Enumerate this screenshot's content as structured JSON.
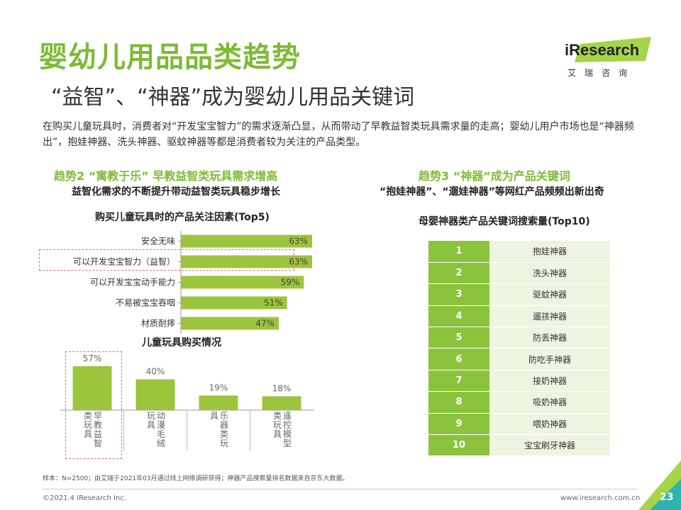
{
  "title": "婴幼儿用品品类趋势",
  "subtitle": "“益智”、“神器”成为婴幼儿用品关键词",
  "description": "在购买儿童玩具时，消费者对“开发宝宝智力”的需求逐渐凸显，从而带动了早教益智类玩具需求量的走高；婴幼儿用户市场也是“神器频出”，抱娃神器、洗头神器、驱蚊神器等都是消费者较为关注的产品类型。",
  "logo": {
    "brand": "iResearch",
    "brand_cn": "艾瑞咨询"
  },
  "colors": {
    "accent": "#7dbb35",
    "bar": "#9cc43c",
    "table_num_bg": "#8bc33d",
    "table_kw_bg": "#edf5e0",
    "highlight": "#e0707a"
  },
  "left": {
    "section_title": "趋势2 “寓教于乐” 早教益智类玩具需求增高",
    "section_subtitle": "益智化需求的不断提升带动益智类玩具稳步增长",
    "hbar_title": "购买儿童玩具时的产品关注因素(Top5)",
    "vbar_title": "儿童玩具购买情况"
  },
  "right": {
    "section_title": "趋势3 “神器“成为产品关键词",
    "section_subtitle": "“抱娃神器”、“遛娃神器”等网红产品频频出新出奇",
    "table_title": "母婴神器类产品关键词搜索量(Top10)",
    "rankings": [
      {
        "rank": "1",
        "keyword": "抱娃神器"
      },
      {
        "rank": "2",
        "keyword": "洗头神器"
      },
      {
        "rank": "3",
        "keyword": "驱蚊神器"
      },
      {
        "rank": "4",
        "keyword": "遛孩神器"
      },
      {
        "rank": "5",
        "keyword": "防丢神器"
      },
      {
        "rank": "6",
        "keyword": "防吃手神器"
      },
      {
        "rank": "7",
        "keyword": "接奶神器"
      },
      {
        "rank": "8",
        "keyword": "吸奶神器"
      },
      {
        "rank": "9",
        "keyword": "喂奶神器"
      },
      {
        "rank": "10",
        "keyword": "宝宝刷牙神器"
      }
    ]
  },
  "chart_data": [
    {
      "type": "bar",
      "orientation": "horizontal",
      "title": "购买儿童玩具时的产品关注因素(Top5)",
      "categories": [
        "安全无味",
        "可以开发宝宝智力（益智）",
        "可以开发宝宝动手能力",
        "不易被宝宝吞咽",
        "材质耐摔"
      ],
      "values": [
        63,
        63,
        59,
        51,
        47
      ],
      "value_labels": [
        "63%",
        "63%",
        "59%",
        "51%",
        "47%"
      ],
      "unit": "%",
      "xlim": [
        0,
        100
      ],
      "highlighted_category": "可以开发宝宝智力（益智）"
    },
    {
      "type": "bar",
      "orientation": "vertical",
      "title": "儿童玩具购买情况",
      "categories": [
        {
          "col1": "早教益智",
          "col2": "类玩具"
        },
        {
          "col1": "动漫毛绒",
          "col2": "玩具"
        },
        {
          "col1": "乐器类玩",
          "col2": "具"
        },
        {
          "col1": "遥控模型",
          "col2": "类玩具"
        }
      ],
      "values": [
        57,
        40,
        19,
        18
      ],
      "value_labels": [
        "57%",
        "40%",
        "19%",
        "18%"
      ],
      "unit": "%",
      "ylim": [
        0,
        60
      ],
      "highlighted_category": "早教益智类玩具"
    }
  ],
  "note": "样本：N=2500；由艾瑞于2021年03月通过线上网络调研获得；神器产品搜索量排名数据来自京东大数据。",
  "footer": {
    "copyright": "©2021.4 iResearch Inc.",
    "website": "www.iresearch.com.cn",
    "page": "23"
  }
}
